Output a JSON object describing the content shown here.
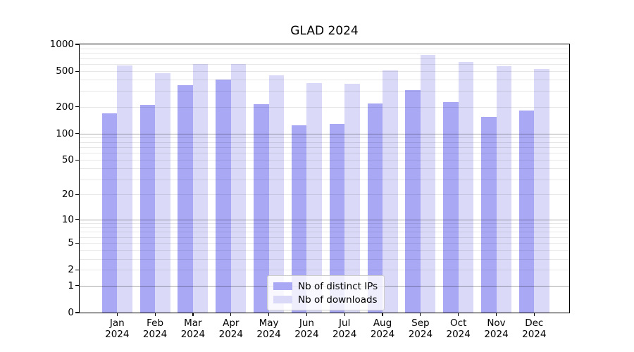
{
  "chart_data": {
    "type": "bar",
    "title": "GLAD 2024",
    "categories": [
      "Jan 2024",
      "Feb 2024",
      "Mar 2024",
      "Apr 2024",
      "May 2024",
      "Jun 2024",
      "Jul 2024",
      "Aug 2024",
      "Sep 2024",
      "Oct 2024",
      "Nov 2024",
      "Dec 2024"
    ],
    "series": [
      {
        "name": "Nb of distinct IPs",
        "color": "#a8a8f5",
        "values": [
          167,
          209,
          347,
          401,
          213,
          123,
          128,
          217,
          309,
          226,
          154,
          180
        ]
      },
      {
        "name": "Nb of downloads",
        "color": "#dadaf8",
        "values": [
          580,
          478,
          605,
          602,
          453,
          367,
          360,
          511,
          757,
          632,
          567,
          533
        ]
      }
    ],
    "xlabel": "",
    "ylabel": "",
    "ylim": [
      0,
      1000
    ],
    "yscale": "log1p",
    "yticks": [
      0,
      1,
      2,
      5,
      10,
      20,
      50,
      100,
      200,
      500,
      1000
    ],
    "ytick_labels": [
      "0",
      "1",
      "2",
      "5",
      "10",
      "20",
      "50",
      "100",
      "200",
      "500",
      "1000"
    ],
    "major_gridlines_at": [
      1,
      10,
      100
    ],
    "grid": "horizontal, drawn above bars",
    "legend_position": "lower center"
  },
  "colors": {
    "background": "#ffffff",
    "axis": "#000000",
    "grid_major": "rgba(0,0,0,0.34)",
    "grid_minor": "rgba(0,0,0,0.095)",
    "legend_border": "#cccccc",
    "legend_background": "rgba(255,255,255,0.8)"
  }
}
